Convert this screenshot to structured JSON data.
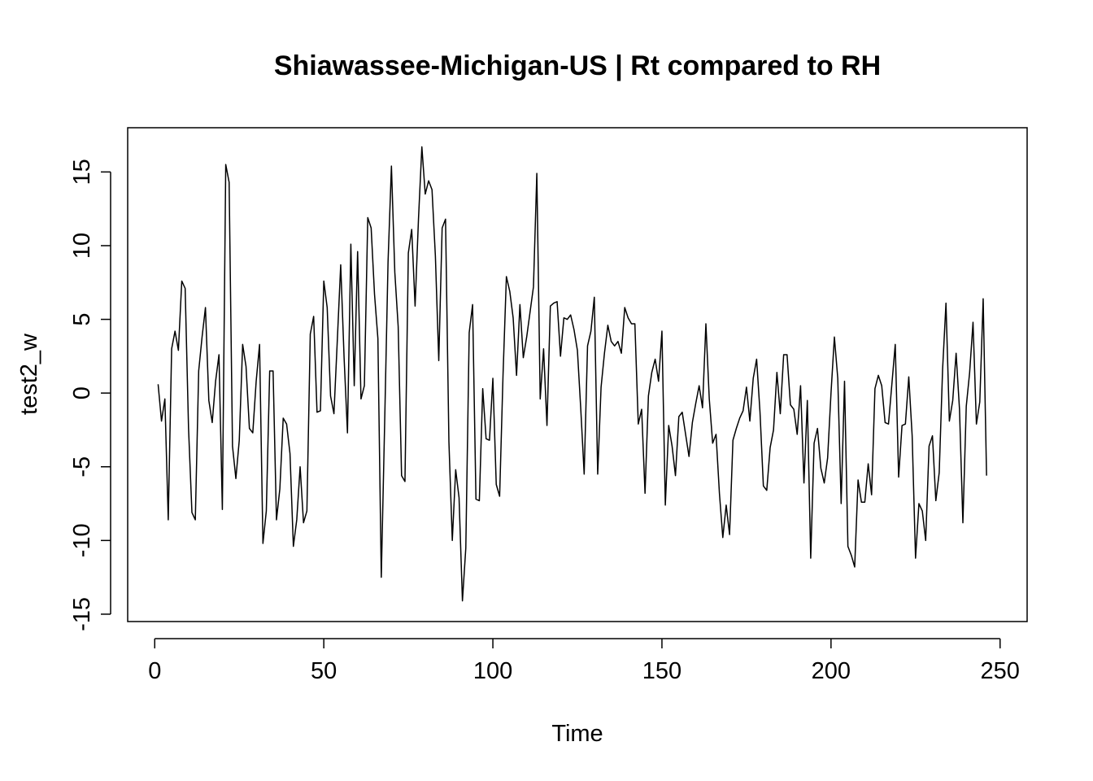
{
  "chart_data": {
    "type": "line",
    "title": "Shiawassee-Michigan-US | Rt compared to RH",
    "xlabel": "Time",
    "ylabel": "test2_w",
    "xlim": [
      -8,
      258
    ],
    "ylim": [
      -15.5,
      18
    ],
    "xticks": [
      0,
      50,
      100,
      150,
      200,
      250
    ],
    "xtick_labels": [
      "0",
      "50",
      "100",
      "150",
      "200",
      "250"
    ],
    "yticks": [
      -15,
      -10,
      -5,
      0,
      5,
      10,
      15
    ],
    "ytick_labels": [
      "-15",
      "-10",
      "-5",
      "0",
      "5",
      "10",
      "15"
    ],
    "grid": false,
    "series": [
      {
        "x_start": 1,
        "values": [
          0.6,
          -1.9,
          -0.4,
          -8.6,
          3.0,
          4.2,
          2.9,
          7.6,
          7.1,
          -2.4,
          -8.1,
          -8.6,
          1.5,
          3.8,
          5.8,
          -0.5,
          -2.0,
          0.8,
          2.6,
          -7.9,
          15.5,
          14.3,
          -3.6,
          -5.8,
          -3.2,
          3.3,
          1.8,
          -2.4,
          -2.7,
          0.8,
          3.3,
          -10.2,
          -8.0,
          1.5,
          1.5,
          -8.6,
          -6.5,
          -1.7,
          -2.1,
          -4.1,
          -10.4,
          -8.6,
          -5.0,
          -8.8,
          -8.0,
          4.0,
          5.2,
          -1.3,
          -1.2,
          7.6,
          5.8,
          -0.2,
          -1.4,
          3.6,
          8.7,
          2.4,
          -2.7,
          10.1,
          0.5,
          9.6,
          -0.4,
          0.5,
          11.9,
          11.2,
          6.7,
          3.7,
          -12.5,
          -2.0,
          8.9,
          15.4,
          8.2,
          4.5,
          -5.6,
          -6.0,
          9.5,
          11.1,
          5.9,
          11.8,
          16.7,
          13.5,
          14.4,
          13.8,
          9.3,
          2.2,
          11.2,
          11.8,
          -3.3,
          -10.0,
          -5.2,
          -7.1,
          -14.1,
          -10.5,
          4.1,
          6.0,
          -7.2,
          -7.3,
          0.3,
          -3.1,
          -3.2,
          1.0,
          -6.2,
          -7.0,
          1.2,
          7.9,
          6.9,
          5.1,
          1.2,
          6.0,
          2.4,
          3.8,
          5.5,
          7.2,
          14.9,
          -0.4,
          3.0,
          -2.2,
          5.9,
          6.1,
          6.2,
          2.5,
          5.1,
          5.0,
          5.3,
          4.3,
          2.9,
          -1.1,
          -5.5,
          3.2,
          4.2,
          6.5,
          -5.5,
          0.4,
          2.7,
          4.6,
          3.5,
          3.2,
          3.5,
          2.7,
          5.8,
          5.1,
          4.7,
          4.7,
          -2.1,
          -1.1,
          -6.8,
          -0.2,
          1.4,
          2.3,
          0.8,
          4.2,
          -7.6,
          -2.2,
          -3.6,
          -5.6,
          -1.6,
          -1.3,
          -2.8,
          -4.3,
          -2.0,
          -0.7,
          0.5,
          -1.0,
          4.7,
          -0.4,
          -3.4,
          -2.8,
          -6.8,
          -9.8,
          -7.6,
          -9.6,
          -3.2,
          -2.4,
          -1.7,
          -1.2,
          0.4,
          -1.9,
          1.0,
          2.3,
          -1.3,
          -6.3,
          -6.6,
          -3.7,
          -2.5,
          1.4,
          -1.4,
          2.6,
          2.6,
          -0.8,
          -1.1,
          -2.8,
          0.5,
          -6.1,
          -0.5,
          -11.2,
          -3.4,
          -2.4,
          -5.1,
          -6.1,
          -4.4,
          0.0,
          3.8,
          1.0,
          -7.5,
          0.8,
          -10.4,
          -11.0,
          -11.8,
          -5.9,
          -7.4,
          -7.4,
          -4.8,
          -6.9,
          0.3,
          1.2,
          0.5,
          -2.0,
          -2.1,
          0.6,
          3.3,
          -5.7,
          -2.2,
          -2.1,
          1.1,
          -2.9,
          -11.2,
          -7.5,
          -8.0,
          -10.0,
          -3.6,
          -2.9,
          -7.3,
          -5.4,
          1.6,
          6.1,
          -1.9,
          -0.5,
          2.7,
          -1.1,
          -8.8,
          -0.9,
          1.4,
          4.8,
          -2.1,
          -0.6,
          6.4,
          -5.6
        ]
      }
    ]
  }
}
